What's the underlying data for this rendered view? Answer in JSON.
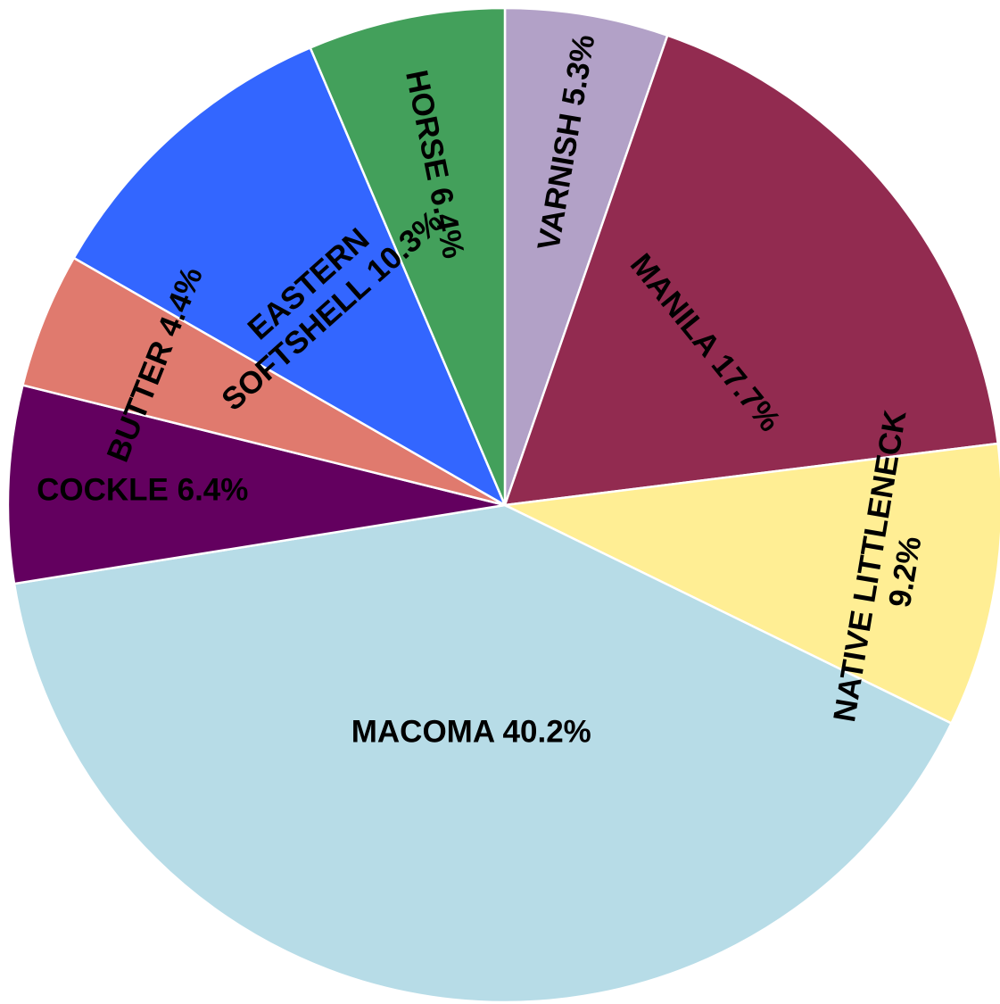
{
  "chart_data": {
    "type": "pie",
    "start_angle_deg": 0,
    "direction": "clockwise",
    "slices": [
      {
        "label": "VARNISH",
        "value": 5.3,
        "text_lines": [
          "VARNISH 5.3%"
        ],
        "color": "#B2A1C7"
      },
      {
        "label": "MANILA",
        "value": 17.7,
        "text_lines": [
          "MANILA 17.7%"
        ],
        "color": "#922B50"
      },
      {
        "label": "NATIVE LITTLENECK",
        "value": 9.2,
        "text_lines": [
          "NATIVE LITTLENECK",
          "9.2%"
        ],
        "color": "#FFEE94"
      },
      {
        "label": "MACOMA",
        "value": 40.2,
        "text_lines": [
          "MACOMA 40.2%"
        ],
        "color": "#B7DCE7"
      },
      {
        "label": "COCKLE",
        "value": 6.4,
        "text_lines": [
          "COCKLE 6.4%"
        ],
        "color": "#63005F"
      },
      {
        "label": "BUTTER",
        "value": 4.4,
        "text_lines": [
          "BUTTER 4.4%"
        ],
        "color": "#E07A6E"
      },
      {
        "label": "EASTERN SOFTSHELL",
        "value": 10.3,
        "text_lines": [
          "EASTERN",
          "SOFTSHELL 10.3%"
        ],
        "color": "#3366FF"
      },
      {
        "label": "HORSE",
        "value": 6.4,
        "text_lines": [
          "HORSE 6.4%"
        ],
        "color": "#43A05B"
      }
    ]
  }
}
